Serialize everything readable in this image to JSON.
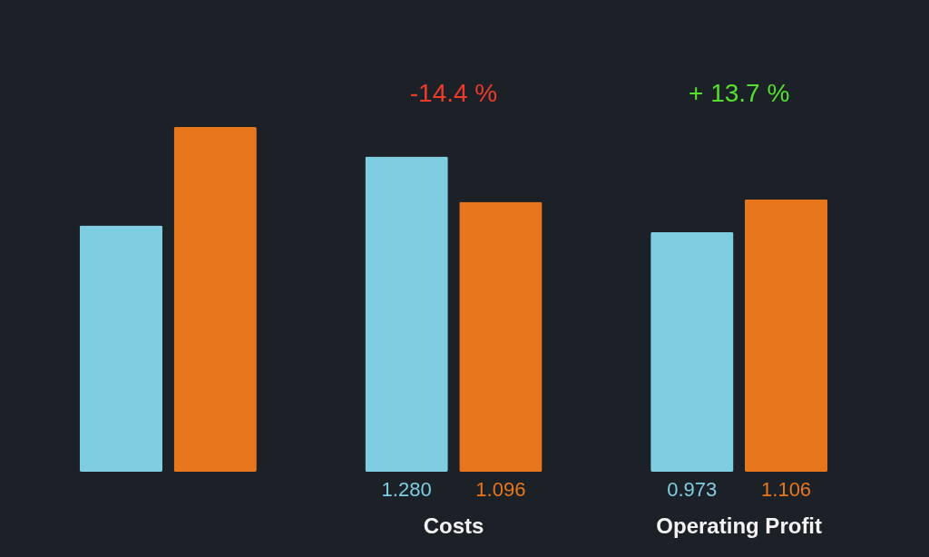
{
  "chart_data": {
    "type": "bar",
    "categories": [
      null,
      "Costs",
      "Operating Profit"
    ],
    "series": [
      {
        "color": "#7ecde0",
        "values": [
          1.0,
          1.28,
          0.973
        ],
        "value_labels": [
          null,
          "1.280",
          "0.973"
        ]
      },
      {
        "color": "#e8761c",
        "values": [
          1.4,
          1.096,
          1.106
        ],
        "value_labels": [
          null,
          "1.096",
          "1.106"
        ]
      }
    ],
    "annotations": [
      "-14.4 %",
      "+ 13.7 %"
    ]
  }
}
